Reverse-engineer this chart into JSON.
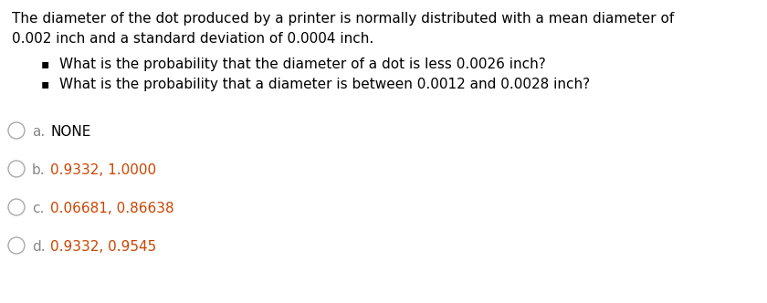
{
  "background_color": "#ffffff",
  "paragraph_line1": "The diameter of the dot produced by a printer is normally distributed with a mean diameter of",
  "paragraph_line2": "0.002 inch and a standard deviation of 0.0004 inch.",
  "bullet1": "What is the probability that the diameter of a dot is less 0.0026 inch?",
  "bullet2": "What is the probability that a diameter is between 0.0012 and 0.0028 inch?",
  "options": [
    {
      "label": "a.",
      "value": "NONE",
      "label_color": "#888888",
      "value_color": "#000000"
    },
    {
      "label": "b.",
      "value": "0.9332, 1.0000",
      "label_color": "#888888",
      "value_color": "#cc4400"
    },
    {
      "label": "c.",
      "value": "0.06681, 0.86638",
      "label_color": "#888888",
      "value_color": "#cc4400"
    },
    {
      "label": "d.",
      "value": "0.9332, 0.9545",
      "label_color": "#888888",
      "value_color": "#cc4400"
    }
  ],
  "text_color": "#000000",
  "font_size": 11.0,
  "bullet_char": "▪",
  "circle_color": "#aaaaaa"
}
